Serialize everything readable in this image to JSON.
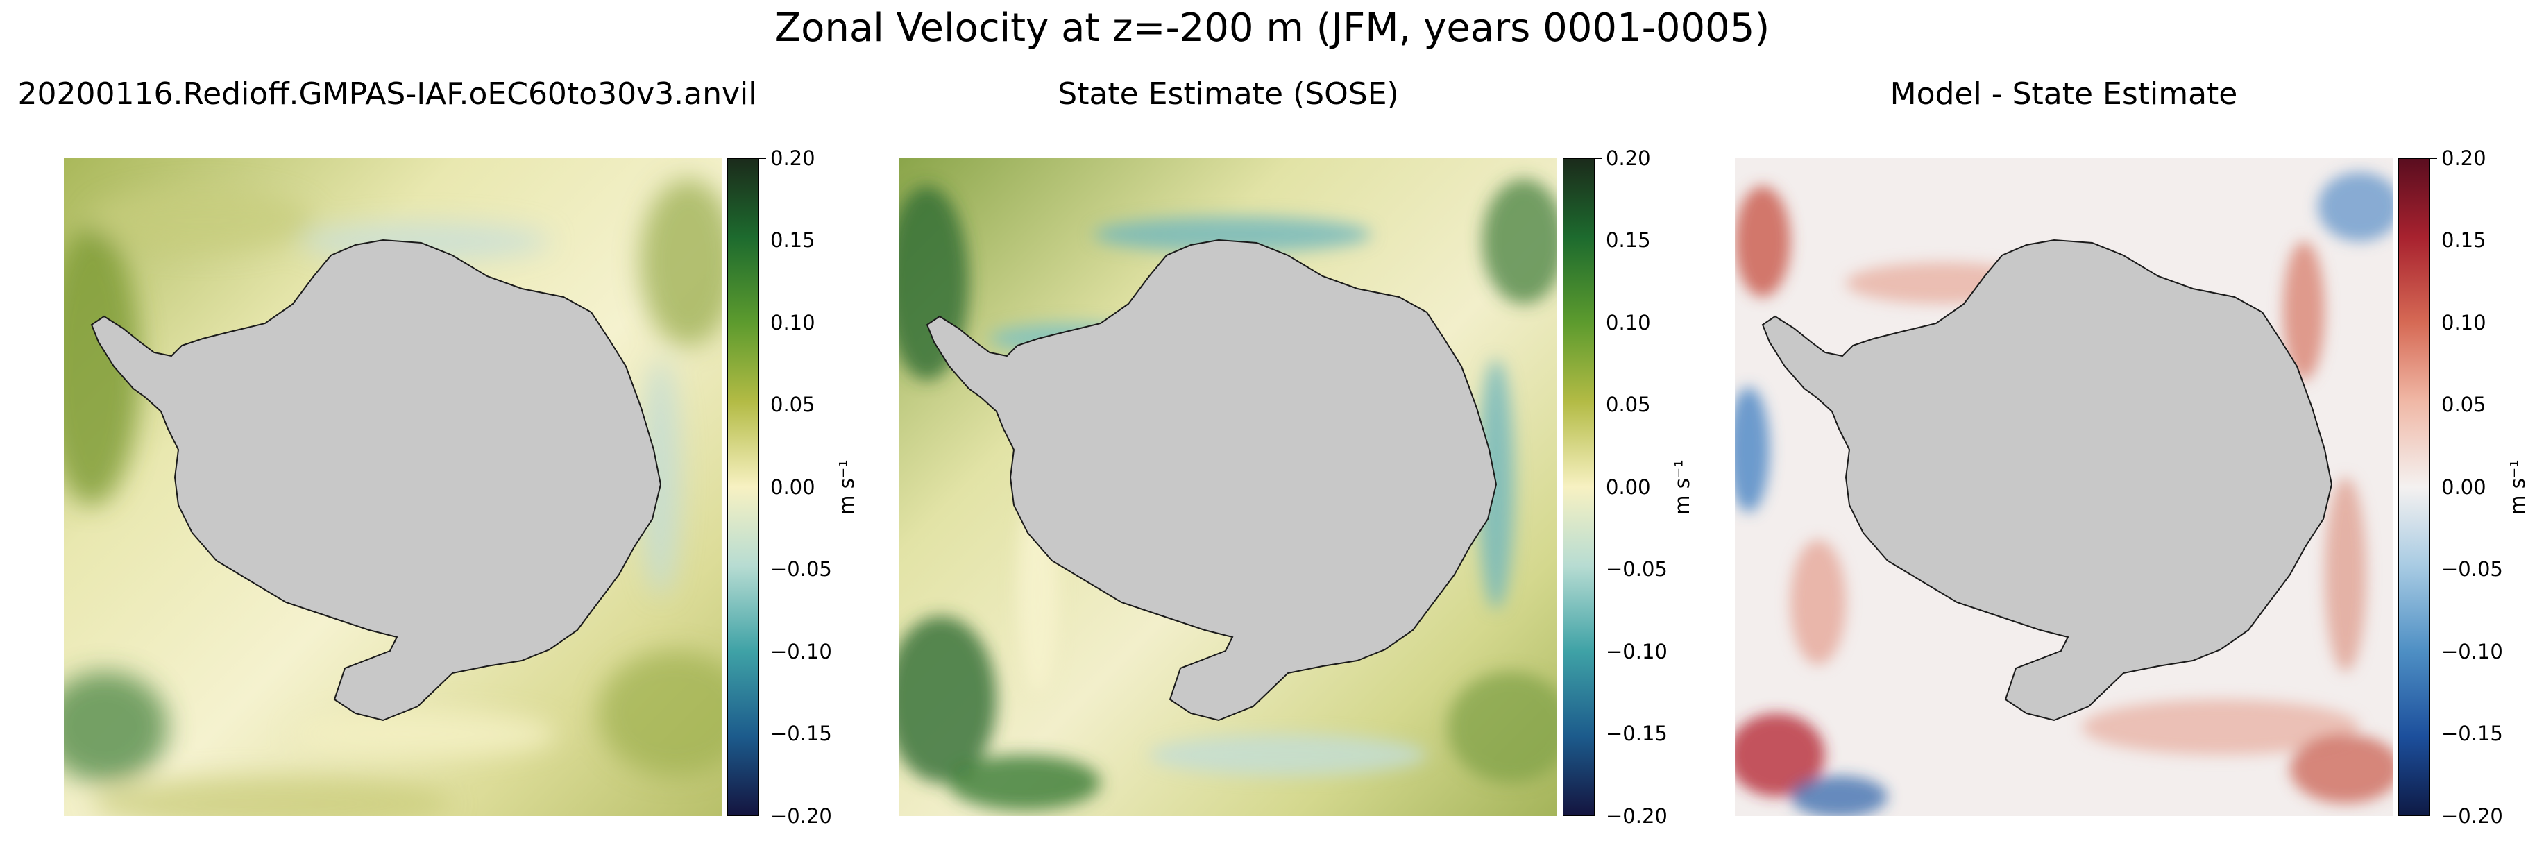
{
  "chart_data": [
    {
      "type": "heatmap",
      "title": "20200116.Redioff.GMPAS-IAF.oEC60to30v3.anvil",
      "region": "Antarctica (south polar stereographic)",
      "colormap": "yellow-green-blue diverging",
      "colorbar": {
        "ticks": [
          "0.20",
          "0.15",
          "0.10",
          "0.05",
          "0.00",
          "−0.05",
          "−0.10",
          "−0.15",
          "−0.20"
        ],
        "range": [
          -0.2,
          0.2
        ],
        "label": "m s⁻¹"
      }
    },
    {
      "type": "heatmap",
      "title": "State Estimate (SOSE)",
      "region": "Antarctica (south polar stereographic)",
      "colormap": "yellow-green-blue diverging",
      "colorbar": {
        "ticks": [
          "0.20",
          "0.15",
          "0.10",
          "0.05",
          "0.00",
          "−0.05",
          "−0.10",
          "−0.15",
          "−0.20"
        ],
        "range": [
          -0.2,
          0.2
        ],
        "label": "m s⁻¹"
      }
    },
    {
      "type": "heatmap",
      "title": "Model - State Estimate",
      "region": "Antarctica (south polar stereographic)",
      "colormap": "red-white-blue diverging",
      "colorbar": {
        "ticks": [
          "0.20",
          "0.15",
          "0.10",
          "0.05",
          "0.00",
          "−0.05",
          "−0.10",
          "−0.15",
          "−0.20"
        ],
        "range": [
          -0.2,
          0.2
        ],
        "label": "m s⁻¹"
      }
    }
  ],
  "figure": {
    "suptitle": "Zonal Velocity at z=-200 m (JFM, years 0001-0005)"
  },
  "colors": {
    "land": "#c8c8c8",
    "coast": "#1a1a1a"
  }
}
